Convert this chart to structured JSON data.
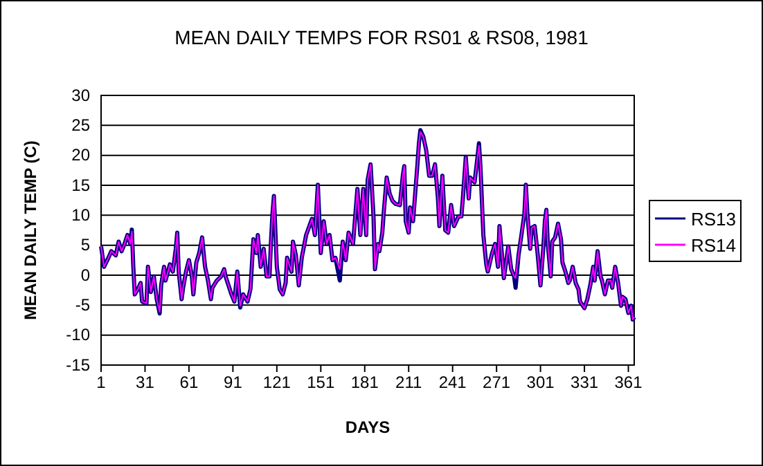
{
  "chart_data": {
    "type": "line",
    "title": "MEAN DAILY TEMPS FOR RS01 & RS08, 1981",
    "xlabel": "DAYS",
    "ylabel": "MEAN DAILY TEMP (C)",
    "x": [
      1,
      3,
      6,
      8,
      11,
      13,
      15,
      17,
      19,
      21,
      22,
      23,
      24,
      26,
      28,
      29,
      32,
      33,
      35,
      37,
      39,
      41,
      42,
      44,
      45,
      48,
      50,
      52,
      53,
      54,
      56,
      57,
      59,
      61,
      63,
      64,
      66,
      68,
      70,
      71,
      72,
      74,
      76,
      77,
      80,
      83,
      85,
      86,
      88,
      90,
      92,
      94,
      96,
      98,
      101,
      103,
      105,
      107,
      108,
      110,
      112,
      114,
      116,
      117,
      118,
      119,
      121,
      123,
      125,
      127,
      128,
      131,
      132,
      134,
      136,
      138,
      141,
      145,
      147,
      149,
      151,
      153,
      155,
      157,
      159,
      161,
      164,
      166,
      168,
      170,
      173,
      175,
      176,
      178,
      180,
      182,
      183,
      185,
      187,
      188,
      190,
      191,
      193,
      194,
      196,
      198,
      200,
      202,
      205,
      207,
      208,
      209,
      211,
      212,
      214,
      217,
      218,
      219,
      221,
      223,
      225,
      227,
      229,
      231,
      232,
      234,
      236,
      238,
      240,
      242,
      245,
      247,
      248,
      250,
      252,
      253,
      256,
      258,
      259,
      260,
      262,
      264,
      265,
      268,
      270,
      272,
      273,
      275,
      276,
      279,
      281,
      283,
      284,
      286,
      288,
      290,
      291,
      292,
      294,
      295,
      297,
      299,
      301,
      303,
      304,
      305,
      306,
      308,
      309,
      311,
      313,
      315,
      316,
      318,
      320,
      321,
      323,
      325,
      327,
      328,
      331,
      333,
      335,
      337,
      338,
      340,
      342,
      343,
      345,
      347,
      349,
      350,
      352,
      354,
      356,
      357,
      359,
      361,
      363,
      364,
      365
    ],
    "series": [
      {
        "name": "RS13",
        "color": "#000080",
        "values": [
          4.8,
          1.4,
          2.9,
          4,
          3.3,
          5.6,
          4,
          5.2,
          6.7,
          5.2,
          7.6,
          1.4,
          -3.2,
          -2.4,
          -1.3,
          -4.4,
          -4.7,
          1.4,
          -2.8,
          -0.2,
          -4,
          -6.4,
          -1.7,
          1.4,
          -0.9,
          1.8,
          0.6,
          4.4,
          7.1,
          0.6,
          -4,
          -2.1,
          0.6,
          2.5,
          -0.2,
          -3.2,
          2.1,
          3.7,
          6.3,
          3.7,
          1.4,
          -0.9,
          -4,
          -2.1,
          -0.9,
          -0.2,
          1,
          -0.2,
          -1.7,
          -3.2,
          -4.4,
          0.6,
          -5.4,
          -3.2,
          -4.4,
          -2.3,
          6,
          3.7,
          6.7,
          1.4,
          4.4,
          -0.2,
          -0.2,
          5.6,
          10.2,
          13.2,
          1.4,
          -2.4,
          -3.2,
          -1.3,
          2.9,
          0.6,
          5.6,
          3.3,
          -1.7,
          2.9,
          6.7,
          9.4,
          6.7,
          15.1,
          3.7,
          9,
          5.2,
          6.7,
          2.5,
          2.9,
          -0.9,
          5.6,
          2.5,
          7.1,
          5.2,
          11.3,
          14.4,
          6.7,
          14.4,
          6.7,
          15.9,
          18.5,
          9.8,
          1,
          5.2,
          4,
          7.1,
          10.5,
          16.3,
          13.6,
          12.4,
          11.9,
          11.7,
          16.6,
          18.2,
          9,
          7.1,
          11.3,
          9,
          18.5,
          22,
          24.2,
          23.1,
          20.8,
          16.6,
          16.6,
          18.5,
          12.8,
          8.2,
          16.6,
          7.5,
          7.1,
          11.7,
          8.2,
          9.8,
          9.8,
          12.8,
          19.7,
          12.8,
          16.3,
          15.5,
          19.7,
          22,
          18.2,
          6.7,
          1.8,
          0.6,
          3.7,
          5.2,
          1.4,
          8.2,
          2.5,
          -0.5,
          4.8,
          1,
          -0.2,
          -2.1,
          3.3,
          6.7,
          10.2,
          15.1,
          10.5,
          4.4,
          7.9,
          8.2,
          3.7,
          -1.7,
          4.8,
          9,
          10.9,
          5.2,
          -0.2,
          5.6,
          6.3,
          8.6,
          6,
          2.1,
          0.6,
          -1.3,
          -0.9,
          1.4,
          -1.3,
          -2.4,
          -4.4,
          -5.5,
          -4,
          -1.7,
          1.4,
          -0.9,
          4,
          -0.2,
          -0.9,
          -3.2,
          -0.9,
          -0.9,
          -2.1,
          1.4,
          -1.3,
          -5.1,
          -3.6,
          -4,
          -6.3,
          -5.1,
          -7.4,
          -7
        ]
      },
      {
        "name": "RS14",
        "color": "#ff00ff",
        "values": [
          4.8,
          1.4,
          2.9,
          4,
          3.3,
          5.6,
          4,
          5.2,
          6.7,
          5.2,
          7.3,
          1.4,
          -3.2,
          -2.4,
          -1.3,
          -4.4,
          -4.7,
          1.4,
          -2.8,
          -0.2,
          -4,
          -6.1,
          -1.7,
          1.4,
          -0.9,
          1.8,
          0.6,
          4.4,
          7.1,
          0.6,
          -4,
          -2.1,
          0.6,
          2.5,
          -0.2,
          -3.2,
          2.1,
          3.7,
          6.3,
          3.7,
          1.4,
          -0.9,
          -4,
          -2.1,
          -0.9,
          -0.2,
          1,
          -0.2,
          -1.7,
          -3.2,
          -4.4,
          0.6,
          -5.1,
          -3.2,
          -4.4,
          -2.3,
          6,
          3.7,
          6.7,
          1.4,
          4.4,
          -0.2,
          -0.2,
          5.6,
          10.2,
          13.2,
          1.4,
          -2.4,
          -3.2,
          -1.3,
          2.9,
          0.6,
          5.6,
          3.3,
          -1.7,
          2.9,
          6.7,
          9.4,
          6.7,
          15.1,
          3.7,
          9,
          5.2,
          6.7,
          2.5,
          2.9,
          1,
          5.6,
          2.5,
          7.1,
          5.2,
          11.3,
          14.4,
          6.7,
          14.4,
          6.7,
          15.9,
          18.5,
          9.8,
          1,
          5.2,
          4,
          7.1,
          10.5,
          16.3,
          13.6,
          12.4,
          11.9,
          11.7,
          16.6,
          18.2,
          9,
          7.1,
          11.3,
          9,
          18.5,
          22,
          23.9,
          23.1,
          20.8,
          16.6,
          16.6,
          18.5,
          12.8,
          8.2,
          16.6,
          7.5,
          7.1,
          11.7,
          8.2,
          9.8,
          9.8,
          12.8,
          19.7,
          12.8,
          16.3,
          15.5,
          19.7,
          21.6,
          18.2,
          6.7,
          1.8,
          0.6,
          3.7,
          5.2,
          1.4,
          8.2,
          2.5,
          -0.5,
          4.8,
          1,
          -0.2,
          -0.5,
          3.3,
          6.7,
          10.2,
          15.1,
          10.5,
          4.4,
          7.9,
          8.2,
          3.7,
          -1.7,
          4.8,
          9,
          10.9,
          5.2,
          -0.2,
          5.6,
          6.3,
          8.6,
          6,
          2.1,
          0.6,
          -1.3,
          -0.9,
          1.4,
          -1.3,
          -2.4,
          -4.4,
          -5.5,
          -4,
          -1.7,
          1.4,
          -0.9,
          4,
          -0.2,
          -0.9,
          -3.2,
          -0.9,
          -0.9,
          -2.1,
          1.4,
          -1.3,
          -5.1,
          -3.6,
          -4,
          -6.3,
          -5.1,
          -7.4,
          -7
        ]
      }
    ],
    "xlim": [
      1,
      365
    ],
    "xticks": [
      1,
      31,
      61,
      91,
      121,
      151,
      181,
      211,
      241,
      271,
      301,
      331,
      361
    ],
    "ylim": [
      -15,
      30
    ],
    "yticks": [
      -15,
      -10,
      -5,
      0,
      5,
      10,
      15,
      20,
      25,
      30
    ],
    "grid": "y",
    "legend": "right",
    "marker": "none",
    "line_style": "solid"
  }
}
